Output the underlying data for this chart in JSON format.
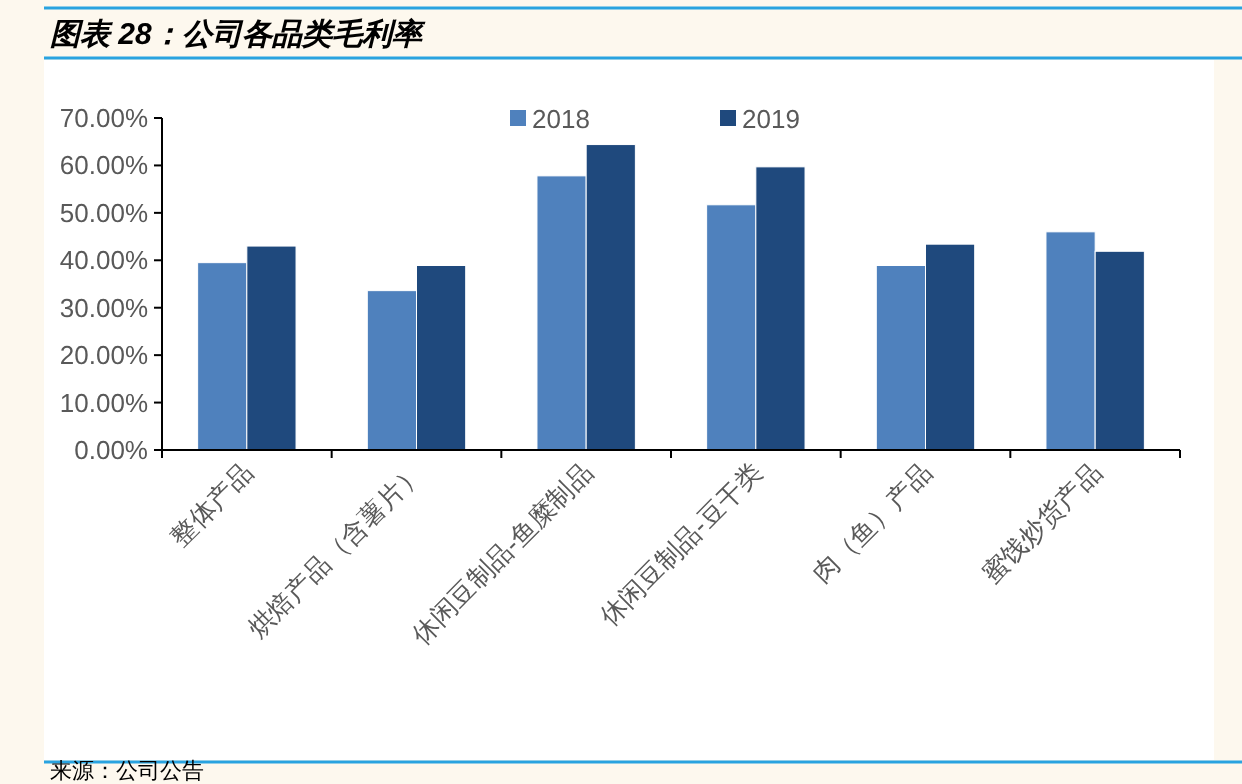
{
  "chart_data": {
    "type": "bar",
    "title": "图表 28：公司各品类毛利率",
    "categories": [
      "整体产品",
      "烘焙产品（含薯片）",
      "休闲豆制品-鱼糜制品",
      "休闲豆制品-豆干类",
      "肉（鱼）产品",
      "蜜饯炒货产品"
    ],
    "series": [
      {
        "name": "2018",
        "color": "#4f81bd",
        "values": [
          39.5,
          33.6,
          57.8,
          51.7,
          38.9,
          46.0
        ]
      },
      {
        "name": "2019",
        "color": "#1f497d",
        "values": [
          43.0,
          38.9,
          64.4,
          59.7,
          43.4,
          41.9
        ]
      }
    ],
    "ylim": [
      0,
      70
    ],
    "yticks": [
      {
        "value": 0,
        "label": "0.00%"
      },
      {
        "value": 10,
        "label": "10.00%"
      },
      {
        "value": 20,
        "label": "20.00%"
      },
      {
        "value": 30,
        "label": "30.00%"
      },
      {
        "value": 40,
        "label": "40.00%"
      },
      {
        "value": 50,
        "label": "50.00%"
      },
      {
        "value": 60,
        "label": "60.00%"
      },
      {
        "value": 70,
        "label": "70.00%"
      }
    ],
    "legend": "top",
    "grid": false,
    "annotations": [
      "来源：公司公告"
    ]
  }
}
